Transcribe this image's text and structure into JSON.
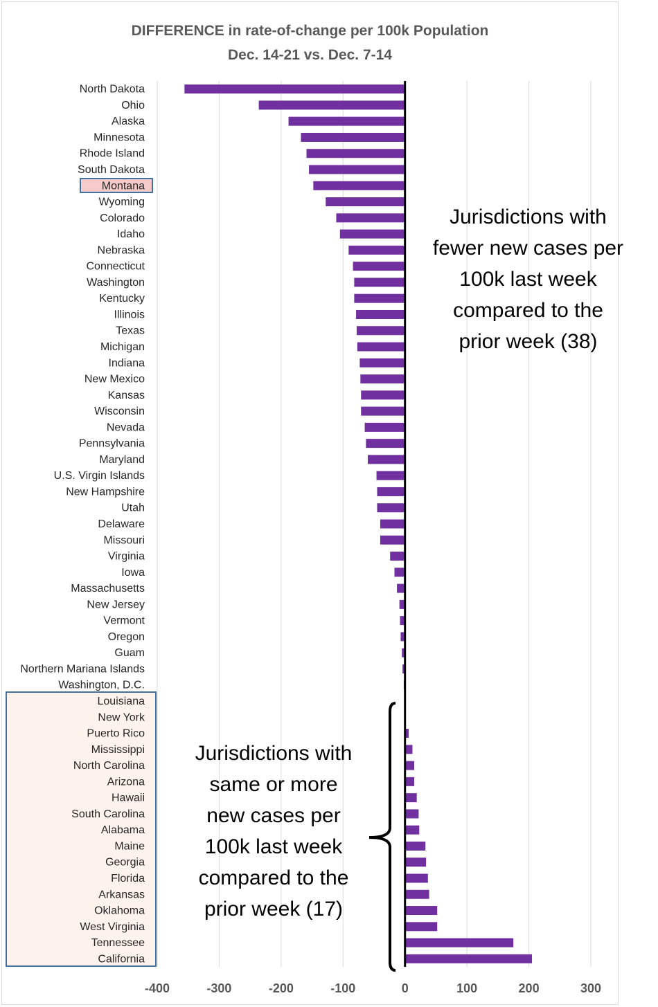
{
  "chart_data": {
    "type": "bar",
    "orientation": "horizontal",
    "title": "DIFFERENCE in rate-of-change per 100k Population",
    "subtitle": "Dec. 14-21 vs. Dec. 7-14",
    "xlim": [
      -400,
      300
    ],
    "xticks": [
      -400,
      -300,
      -200,
      -100,
      0,
      100,
      200,
      300
    ],
    "grid": "vertical",
    "bar_color": "#7030a0",
    "categories": [
      "North Dakota",
      "Ohio",
      "Alaska",
      "Minnesota",
      "Rhode Island",
      "South Dakota",
      "Montana",
      "Wyoming",
      "Colorado",
      "Idaho",
      "Nebraska",
      "Connecticut",
      "Washington",
      "Kentucky",
      "Illinois",
      "Texas",
      "Michigan",
      "Indiana",
      "New Mexico",
      "Kansas",
      "Wisconsin",
      "Nevada",
      "Pennsylvania",
      "Maryland",
      "U.S. Virgin Islands",
      "New Hampshire",
      "Utah",
      "Delaware",
      "Missouri",
      "Virginia",
      "Iowa",
      "Massachusetts",
      "New Jersey",
      "Vermont",
      "Oregon",
      "Guam",
      "Northern Mariana Islands",
      "Washington, D.C.",
      "Louisiana",
      "New York",
      "Puerto Rico",
      "Mississippi",
      "North Carolina",
      "Arizona",
      "Hawaii",
      "South Carolina",
      "Alabama",
      "Maine",
      "Georgia",
      "Florida",
      "Arkansas",
      "Oklahoma",
      "West Virginia",
      "Tennessee",
      "California"
    ],
    "values": [
      -356,
      -236,
      -188,
      -168,
      -159,
      -155,
      -148,
      -128,
      -111,
      -105,
      -91,
      -84,
      -82,
      -82,
      -79,
      -78,
      -77,
      -73,
      -72,
      -71,
      -71,
      -65,
      -63,
      -60,
      -46,
      -45,
      -45,
      -40,
      -40,
      -24,
      -17,
      -13,
      -9,
      -8,
      -7,
      -5,
      -4,
      -2,
      0,
      0,
      6,
      12,
      15,
      15,
      19,
      22,
      23,
      33,
      34,
      37,
      39,
      52,
      52,
      175,
      205
    ],
    "highlight_label": "Montana",
    "highlight_label_color": "#f8cbcb",
    "highlight_group_color": "#fdf2ec",
    "highlight_group_start": "Louisiana",
    "annotations": {
      "fewer": [
        "Jurisdictions with",
        "fewer new cases per",
        "100k last week",
        "compared to the",
        "prior week (38)"
      ],
      "same_or_more": [
        "Jurisdictions with",
        "same or more",
        "new cases per",
        "100k last week",
        "compared to the",
        "prior week (17)"
      ]
    }
  }
}
